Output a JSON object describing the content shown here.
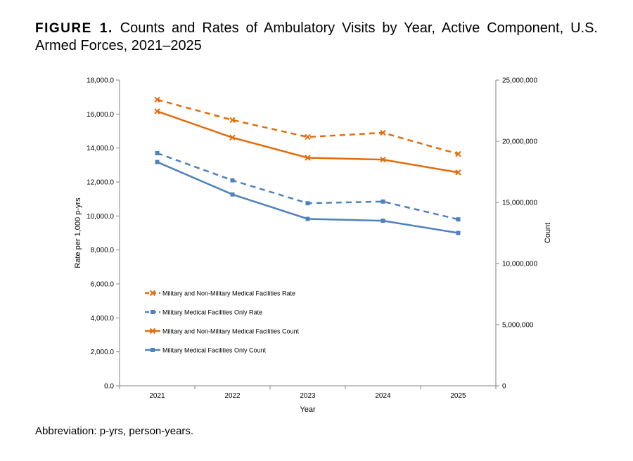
{
  "figure": {
    "label": "FIGURE 1.",
    "title": "Counts and Rates of Ambulatory Visits by Year, Active Component, U.S. Armed Forces, 2021–2025"
  },
  "footnote": "Abbreviation: p-yrs, person-years.",
  "chart_data": {
    "type": "line",
    "categories": [
      "2021",
      "2022",
      "2023",
      "2024",
      "2025"
    ],
    "xlabel": "Year",
    "ylabel": "Rate per 1,000 p-yrs",
    "y2label": "Count",
    "ylim": [
      0,
      18000
    ],
    "y2lim": [
      0,
      25000000
    ],
    "yticks": [
      "0.0",
      "2,000.0",
      "4,000.0",
      "6,000.0",
      "8,000.0",
      "10,000.0",
      "12,000.0",
      "14,000.0",
      "16,000.0",
      "18,000.0"
    ],
    "y2ticks": [
      "0",
      "5,000,000",
      "10,000,000",
      "15,000,000",
      "20,000,000",
      "25,000,000"
    ],
    "grid": false,
    "legend_position": "lower-left",
    "series": [
      {
        "name": "Military and Non-Military Medical Facilities Rate",
        "axis": "left",
        "color": "#E36C0A",
        "dashed": true,
        "marker": "x",
        "values": [
          16850,
          15650,
          14650,
          14900,
          13650
        ]
      },
      {
        "name": "Military Medical Facilities Only Rate",
        "axis": "left",
        "color": "#4F81BD",
        "dashed": true,
        "marker": "square",
        "values": [
          13700,
          12100,
          10750,
          10850,
          9800
        ]
      },
      {
        "name": "Military and Non-Military Medical Facilities Count",
        "axis": "right",
        "color": "#E36C0A",
        "dashed": false,
        "marker": "x",
        "values": [
          22450000,
          20300000,
          18650000,
          18500000,
          17450000
        ]
      },
      {
        "name": "Military Medical Facilities Only Count",
        "axis": "right",
        "color": "#4F81BD",
        "dashed": false,
        "marker": "square",
        "values": [
          18300000,
          15650000,
          13650000,
          13500000,
          12500000
        ]
      }
    ]
  }
}
